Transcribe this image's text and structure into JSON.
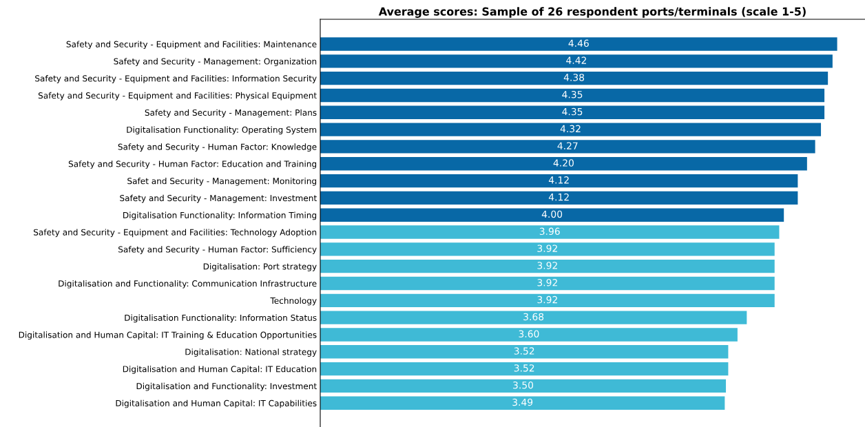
{
  "chart_data": {
    "type": "bar",
    "orientation": "horizontal",
    "title": "Average scores: Sample of 26 respondent ports/terminals (scale 1-5)",
    "categories": [
      "Safety and Security - Equipment and Facilities: Maintenance",
      "Safety and Security - Management: Organization",
      "Safety and Security - Equipment and Facilities: Information Security",
      "Safety and Security - Equipment and Facilities: Physical Equipment",
      "Safety and Security - Management: Plans",
      "Digitalisation Functionality: Operating System",
      "Safety and Security - Human Factor: Knowledge",
      "Safety and Security - Human Factor: Education and Training",
      "Safet and Security - Management: Monitoring",
      "Safety and Security - Management: Investment",
      "Digitalisation Functionality: Information Timing",
      "Safety and Security - Equipment and Facilities: Technology Adoption",
      "Safety and Security - Human Factor: Sufficiency",
      "Digitalisation: Port strategy",
      "Digitalisation and Functionality: Communication Infrastructure",
      "Technology",
      "Digitalisation Functionality: Information Status",
      "Digitalisation and Human Capital: IT Training & Education Opportunities",
      "Digitalisation: National strategy",
      "Digitalisation and Human Capital: IT Education",
      "Digitalisation and Functionality: Investment",
      "Digitalisation and Human Capital: IT Capabilities"
    ],
    "values": [
      4.46,
      4.42,
      4.38,
      4.35,
      4.35,
      4.32,
      4.27,
      4.2,
      4.12,
      4.12,
      4.0,
      3.96,
      3.92,
      3.92,
      3.92,
      3.92,
      3.68,
      3.6,
      3.52,
      3.52,
      3.5,
      3.49
    ],
    "value_labels": [
      "4.46",
      "4.42",
      "4.38",
      "4.35",
      "4.35",
      "4.32",
      "4.27",
      "4.20",
      "4.12",
      "4.12",
      "4.00",
      "3.96",
      "3.92",
      "3.92",
      "3.92",
      "3.92",
      "3.68",
      "3.60",
      "3.52",
      "3.52",
      "3.50",
      "3.49"
    ],
    "colors": [
      "#0868a6",
      "#0868a6",
      "#0868a6",
      "#0868a6",
      "#0868a6",
      "#0868a6",
      "#0868a6",
      "#0868a6",
      "#0868a6",
      "#0868a6",
      "#0868a6",
      "#3fbad6",
      "#3fbad6",
      "#3fbad6",
      "#3fbad6",
      "#3fbad6",
      "#3fbad6",
      "#3fbad6",
      "#3fbad6",
      "#3fbad6",
      "#3fbad6",
      "#3fbad6"
    ],
    "xlim": [
      0,
      4.7
    ],
    "tick_labels": "y",
    "grid": false,
    "legend": false
  }
}
